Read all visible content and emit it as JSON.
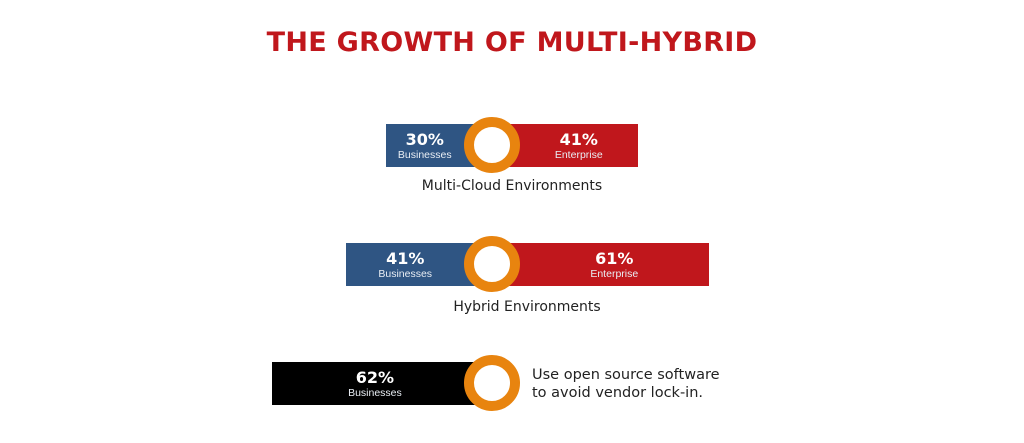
{
  "title": "THE GROWTH OF MULTI-HYBRID",
  "colors": {
    "title": "#c0171c",
    "businesses": "#2f5583",
    "enterprise": "#c0171c",
    "single": "#000000",
    "ring": "#e8840f"
  },
  "chart_data": {
    "type": "bar",
    "title": "THE GROWTH OF MULTI-HYBRID",
    "rows": [
      {
        "category": "Multi-Cloud Environments",
        "segments": [
          {
            "name": "Businesses",
            "value": 30,
            "label": "30%"
          },
          {
            "name": "Enterprise",
            "value": 41,
            "label": "41%"
          }
        ]
      },
      {
        "category": "Hybrid Environments",
        "segments": [
          {
            "name": "Businesses",
            "value": 41,
            "label": "41%"
          },
          {
            "name": "Enterprise",
            "value": 61,
            "label": "61%"
          }
        ]
      },
      {
        "category": "Use open source software to avoid vendor lock-in.",
        "category_lines": [
          "Use open source software",
          "to avoid vendor lock-in."
        ],
        "segments": [
          {
            "name": "Businesses",
            "value": 62,
            "label": "62%"
          }
        ]
      }
    ]
  }
}
